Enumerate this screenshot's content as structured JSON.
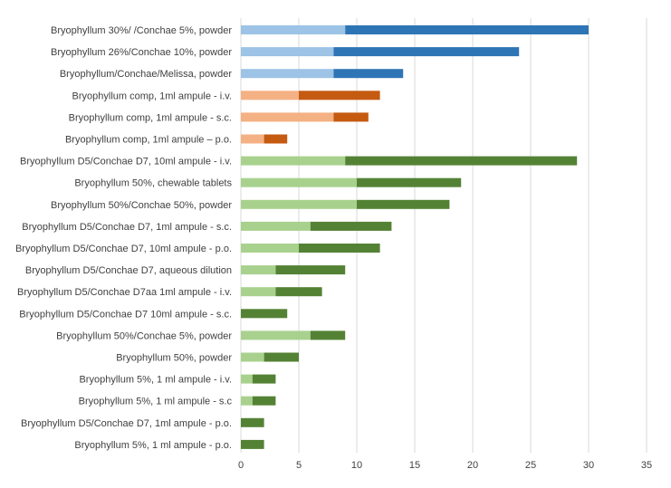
{
  "chart_data": {
    "type": "bar",
    "orientation": "horizontal",
    "stacked": true,
    "title": "",
    "xlabel": "",
    "ylabel": "",
    "xlim": [
      0,
      35
    ],
    "xticks": [
      0,
      5,
      10,
      15,
      20,
      25,
      30,
      35
    ],
    "grid": true,
    "legend": "none",
    "series_names": [
      "segment-1",
      "segment-2"
    ],
    "categories": [
      "Bryophyllum 30%/ /Conchae 5%, powder",
      "Bryophyllum 26%/Conchae 10%, powder",
      "Bryophyllum/Conchae/Melissa, powder",
      "Bryophyllum comp, 1ml ampule - i.v.",
      "Bryophyllum comp, 1ml ampule - s.c.",
      "Bryophyllum comp, 1ml ampule – p.o.",
      "Bryophyllum D5/Conchae D7, 10ml ampule - i.v.",
      "Bryophyllum 50%, chewable tablets",
      "Bryophyllum 50%/Conchae 50%, powder",
      "Bryophyllum D5/Conchae D7, 1ml ampule - s.c.",
      "Bryophyllum D5/Conchae D7, 10ml ampule - p.o.",
      "Bryophyllum D5/Conchae D7,  aqueous dilution",
      "Bryophyllum D5/Conchae D7aa 1ml ampule - i.v.",
      "Bryophyllum D5/Conchae D7 10ml ampule - s.c.",
      "Bryophyllum 50%/Conchae 5%, powder",
      "Bryophyllum 50%, powder",
      "Bryophyllum 5%, 1 ml ampule - i.v.",
      "Bryophyllum 5%, 1 ml ampule - s.c",
      "Bryophyllum D5/Conchae D7, 1ml ampule - p.o.",
      "Bryophyllum 5%, 1 ml ampule - p.o."
    ],
    "segment1": [
      9,
      8,
      8,
      5,
      8,
      2,
      9,
      10,
      10,
      6,
      5,
      3,
      3,
      0,
      6,
      2,
      1,
      1,
      0,
      0
    ],
    "segment2": [
      21,
      16,
      6,
      7,
      3,
      2,
      20,
      9,
      8,
      7,
      7,
      6,
      4,
      4,
      3,
      3,
      2,
      2,
      2,
      2
    ],
    "groups": [
      "blue",
      "blue",
      "blue",
      "orange",
      "orange",
      "orange",
      "green",
      "green",
      "green",
      "green",
      "green",
      "green",
      "green",
      "green",
      "green",
      "green",
      "green",
      "green",
      "green",
      "green"
    ]
  },
  "colors": {
    "blue_light": "#9dc3e6",
    "blue_dark": "#2e75b6",
    "orange_light": "#f4b183",
    "orange_dark": "#c55a11",
    "green_light": "#a9d18e",
    "green_dark": "#548235",
    "grid": "#d9d9d9",
    "text": "#404040"
  }
}
